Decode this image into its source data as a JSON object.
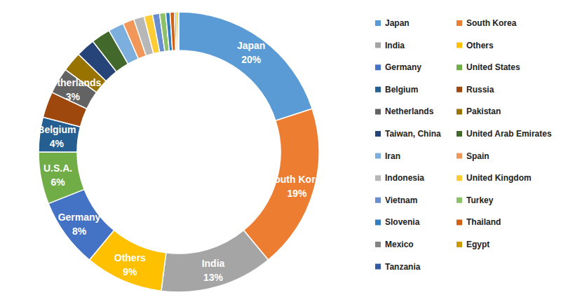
{
  "chart_data": {
    "type": "pie",
    "legend": "right",
    "data_labels": true,
    "categories": [
      "Japan",
      "South Korea",
      "India",
      "Others",
      "Germany",
      "United States",
      "Belgium",
      "Russia",
      "Netherlands",
      "Pakistan",
      "Taiwan, China",
      "United Arab Emirates",
      "Iran",
      "Spain",
      "Indonesia",
      "United Kingdom",
      "Vietnam",
      "Turkey",
      "Slovenia",
      "Thailand",
      "Mexico",
      "Egypt",
      "Tanzania"
    ],
    "values": [
      20,
      19,
      13,
      9,
      8,
      6,
      4,
      3,
      3,
      2.3,
      2.2,
      2.2,
      1.8,
      1.3,
      1.2,
      1.0,
      0.8,
      0.7,
      0.5,
      0.5,
      0.2,
      0.2,
      0.1
    ],
    "labels": [
      "Japan",
      "South Korea",
      "India",
      "Others",
      "Germany",
      "U.S.A.",
      "Belgium",
      "Russia",
      "Netherlands",
      null,
      null,
      null,
      null,
      null,
      null,
      null,
      null,
      null,
      null,
      null,
      null,
      null,
      null
    ],
    "value_labels": [
      "20%",
      "19%",
      "13%",
      "9%",
      "8%",
      "6%",
      "4%",
      null,
      "3%",
      null,
      null,
      null,
      null,
      null,
      null,
      null,
      null,
      null,
      null,
      null,
      null,
      null,
      null
    ],
    "colors": [
      "#5B9BD5",
      "#ED7D31",
      "#A5A5A5",
      "#FFC000",
      "#4472C4",
      "#70AD47",
      "#255E91",
      "#9E480E",
      "#636363",
      "#997300",
      "#264478",
      "#43682B",
      "#7CAFDD",
      "#F1975A",
      "#B7B7B7",
      "#FFCD33",
      "#698ED0",
      "#8CC168",
      "#327DC2",
      "#D26012",
      "#848484",
      "#CC9A00",
      "#335AA1"
    ]
  }
}
